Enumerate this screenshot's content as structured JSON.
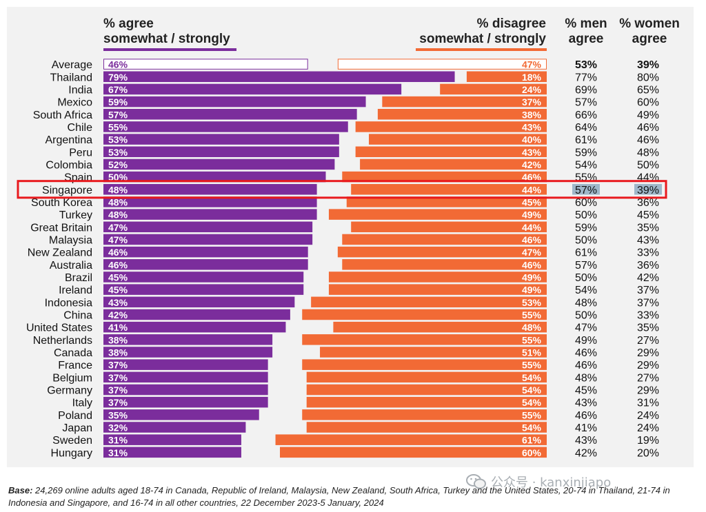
{
  "headers": {
    "agree": [
      "% agree",
      "somewhat / strongly"
    ],
    "disagree": [
      "% disagree",
      "somewhat / strongly"
    ],
    "men": [
      "% men",
      "agree"
    ],
    "women": [
      "% women",
      "agree"
    ]
  },
  "colors": {
    "agree": "#7b2d9c",
    "disagree": "#f26a35",
    "highlight": "#e8191d",
    "men_highlight": "#9fb7c9",
    "background": "#f2f2f2"
  },
  "footnote": {
    "base_label": "Base:",
    "text": " 24,269 online adults aged 18-74 in Canada, Republic of Ireland, Malaysia, New Zealand, South Africa, Turkey and the United States, 20-74 in Thailand, 21-74 in Indonesia and Singapore, and 16-74 in all other countries, 22 December 2023-5 January, 2024"
  },
  "watermark": {
    "icon": "wechat-icon",
    "text": "公众号 · kanxinjiapo"
  },
  "chart_data": {
    "type": "bar",
    "orientation": "horizontal-diverging",
    "highlighted": "Singapore",
    "categories": [
      "Average",
      "Thailand",
      "India",
      "Mexico",
      "South Africa",
      "Chile",
      "Argentina",
      "Peru",
      "Colombia",
      "Spain",
      "Singapore",
      "South Korea",
      "Turkey",
      "Great Britain",
      "Malaysia",
      "New Zealand",
      "Australia",
      "Brazil",
      "Ireland",
      "Indonesia",
      "China",
      "United States",
      "Netherlands",
      "Canada",
      "France",
      "Belgium",
      "Germany",
      "Italy",
      "Poland",
      "Japan",
      "Sweden",
      "Hungary"
    ],
    "series": [
      {
        "name": "% agree somewhat / strongly",
        "values": [
          46,
          79,
          67,
          59,
          57,
          55,
          53,
          53,
          52,
          50,
          48,
          48,
          48,
          47,
          47,
          46,
          46,
          45,
          45,
          43,
          42,
          41,
          38,
          38,
          37,
          37,
          37,
          37,
          35,
          32,
          31,
          31
        ]
      },
      {
        "name": "% disagree somewhat / strongly",
        "values": [
          47,
          18,
          24,
          37,
          38,
          43,
          40,
          43,
          42,
          46,
          44,
          45,
          49,
          44,
          46,
          47,
          46,
          49,
          49,
          53,
          55,
          48,
          55,
          51,
          55,
          54,
          54,
          54,
          55,
          54,
          61,
          60
        ]
      },
      {
        "name": "% men agree",
        "values": [
          53,
          77,
          69,
          57,
          66,
          64,
          61,
          59,
          54,
          55,
          57,
          60,
          50,
          59,
          50,
          61,
          57,
          50,
          54,
          48,
          50,
          47,
          49,
          46,
          46,
          48,
          45,
          43,
          46,
          41,
          43,
          42
        ]
      },
      {
        "name": "% women agree",
        "values": [
          39,
          80,
          65,
          60,
          49,
          46,
          46,
          48,
          50,
          44,
          39,
          36,
          45,
          35,
          43,
          33,
          36,
          42,
          37,
          37,
          33,
          35,
          27,
          29,
          29,
          27,
          29,
          31,
          24,
          24,
          19,
          20
        ]
      }
    ]
  }
}
